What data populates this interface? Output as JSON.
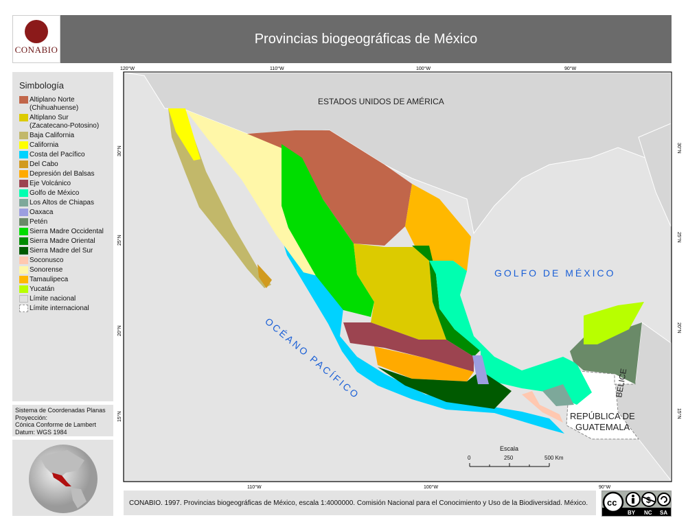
{
  "logo": {
    "text": "CONABIO"
  },
  "header": {
    "title": "Provincias biogeográficas de México"
  },
  "legend": {
    "title": "Simbología",
    "items": [
      {
        "label": "Altiplano Norte (Chihuahuense)",
        "color": "#c1664a"
      },
      {
        "label": "Altiplano Sur (Zacatecano-Potosino)",
        "color": "#dccb00"
      },
      {
        "label": "Baja California",
        "color": "#c2b86a"
      },
      {
        "label": "California",
        "color": "#ffff00"
      },
      {
        "label": "Costa del Pacífico",
        "color": "#00d2ff"
      },
      {
        "label": "Del Cabo",
        "color": "#d19a1e"
      },
      {
        "label": "Depresión del Balsas",
        "color": "#ffaa00"
      },
      {
        "label": "Eje Volcánico",
        "color": "#9c4450"
      },
      {
        "label": "Golfo de México",
        "color": "#00ffb0"
      },
      {
        "label": "Los Altos de Chiapas",
        "color": "#7da89a"
      },
      {
        "label": "Oaxaca",
        "color": "#9c9ee0"
      },
      {
        "label": "Petén",
        "color": "#6a8a68"
      },
      {
        "label": "Sierra Madre Occidental",
        "color": "#00dd00"
      },
      {
        "label": "Sierra Madre Oriental",
        "color": "#008a00"
      },
      {
        "label": "Sierra Madre del Sur",
        "color": "#005a00"
      },
      {
        "label": "Soconusco",
        "color": "#ffc8b0"
      },
      {
        "label": "Sonorense",
        "color": "#fff7a8"
      },
      {
        "label": "Tamaulipeca",
        "color": "#ffb800"
      },
      {
        "label": "Yucatán",
        "color": "#b8ff00"
      },
      {
        "label": "Límite nacional",
        "color": "#e0e0e0"
      },
      {
        "label": "Límite internacional",
        "color": "#ffffff"
      }
    ]
  },
  "coords": {
    "lines": [
      "Sistema de Coordenadas Planas",
      "Proyección:",
      "Cónica Conforme de Lambert",
      "Datum: WGS 1984"
    ]
  },
  "map": {
    "top_ticks": [
      "120°W",
      "110°W",
      "100°W",
      "90°W"
    ],
    "bottom_ticks": [
      "110°W",
      "100°W",
      "90°W"
    ],
    "lat_ticks": [
      "30°N",
      "25°N",
      "20°N",
      "15°N"
    ],
    "labels": {
      "usa": "ESTADOS UNIDOS DE AMÉRICA",
      "gulf": "GOLFO DE MÉXICO",
      "pacific": "OCÉANO PACÍFICO",
      "belize": "BELICE",
      "guatemala_1": "REPÚBLICA DE",
      "guatemala_2": "GUATEMALA"
    },
    "label_color": "#1a5fd6",
    "scale": {
      "title": "Escala",
      "ticks": [
        "0",
        "250",
        "500 Km"
      ]
    }
  },
  "citation": "CONABIO. 1997. Provincias biogeográficas de México, escala 1:4000000. Comisión Nacional para el Conocimiento y Uso de la Biodiversidad. México.",
  "license": {
    "labels": [
      "BY",
      "NC",
      "SA"
    ],
    "icons": [
      "cc-icon",
      "by-icon",
      "nc-icon",
      "sa-icon"
    ]
  }
}
